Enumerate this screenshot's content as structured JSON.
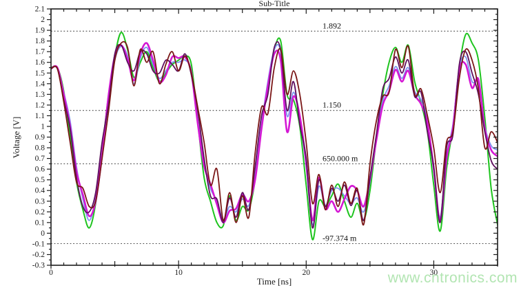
{
  "chart": {
    "title": "Sub-Title",
    "xlabel": "Time [ns]",
    "ylabel": "Voltage [V]",
    "watermark": "www.cntronics.com"
  },
  "colors": {
    "background": "#ffffff",
    "axis": "#1a1a1a",
    "reference_line": "#4a4a4a",
    "watermark": "#b2e5b2"
  },
  "chart_data": {
    "type": "line",
    "title": "Sub-Title",
    "xlabel": "Time [ns]",
    "ylabel": "Voltage [V]",
    "xlim": [
      0,
      35
    ],
    "ylim": [
      -0.3,
      2.1
    ],
    "grid": false,
    "legend": "none",
    "x_major_ticks": [
      0,
      10,
      20,
      30
    ],
    "x_medium_tick_interval": 5,
    "x_minor_tick_interval": 1,
    "y_major_tick_interval": 0.1,
    "y_minor_tick_interval": 0.05,
    "reference_lines": [
      {
        "value": 1.892,
        "label": "1.892"
      },
      {
        "value": 1.15,
        "label": "1.150"
      },
      {
        "value": 0.65,
        "label": "650.000 m"
      },
      {
        "value": -0.097374,
        "label": "-97.374 m"
      }
    ],
    "x_start": 0,
    "x_step": 0.5,
    "series": [
      {
        "name": "trace-green",
        "color": "#1ec41e",
        "values": [
          1.55,
          1.55,
          1.33,
          0.9,
          0.48,
          0.22,
          0.05,
          0.28,
          0.78,
          1.28,
          1.66,
          1.88,
          1.72,
          1.46,
          1.6,
          1.7,
          1.55,
          1.42,
          1.5,
          1.58,
          1.62,
          1.66,
          1.58,
          1.05,
          0.52,
          0.3,
          0.1,
          0.07,
          0.35,
          0.12,
          0.25,
          0.22,
          0.5,
          1.0,
          1.38,
          1.72,
          1.8,
          1.3,
          1.25,
          1.0,
          0.45,
          -0.06,
          0.3,
          0.25,
          0.35,
          0.46,
          0.3,
          0.15,
          0.28,
          0.12,
          0.4,
          0.88,
          1.3,
          1.6,
          1.74,
          1.6,
          1.76,
          1.42,
          1.22,
          0.95,
          0.45,
          0.02,
          0.6,
          1.0,
          1.55,
          1.86,
          1.78,
          1.62,
          1.08,
          0.42,
          0.08
        ]
      },
      {
        "name": "trace-lightblue",
        "color": "#7d95ee",
        "values": [
          1.54,
          1.55,
          1.32,
          1.05,
          0.62,
          0.32,
          0.12,
          0.33,
          0.76,
          1.24,
          1.62,
          1.75,
          1.66,
          1.4,
          1.64,
          1.74,
          1.58,
          1.45,
          1.52,
          1.6,
          1.6,
          1.62,
          1.52,
          1.06,
          0.66,
          0.42,
          0.3,
          0.13,
          0.25,
          0.2,
          0.32,
          0.26,
          0.54,
          1.02,
          1.42,
          1.72,
          1.7,
          1.1,
          1.32,
          1.08,
          0.62,
          0.08,
          0.44,
          0.26,
          0.4,
          0.42,
          0.35,
          0.28,
          0.33,
          0.2,
          0.48,
          0.9,
          1.24,
          1.38,
          1.56,
          1.45,
          1.55,
          1.33,
          1.25,
          1.06,
          0.58,
          0.15,
          0.72,
          1.02,
          1.55,
          1.65,
          1.42,
          1.4,
          1.0,
          0.82,
          0.78
        ]
      },
      {
        "name": "trace-magenta",
        "color": "#d418d4",
        "values": [
          1.54,
          1.55,
          1.3,
          1.0,
          0.58,
          0.36,
          0.16,
          0.3,
          0.73,
          1.28,
          1.66,
          1.76,
          1.63,
          1.43,
          1.68,
          1.78,
          1.62,
          1.42,
          1.48,
          1.65,
          1.64,
          1.65,
          1.5,
          1.03,
          0.63,
          0.46,
          0.27,
          0.1,
          0.21,
          0.23,
          0.36,
          0.3,
          0.5,
          0.98,
          1.38,
          1.68,
          1.62,
          0.95,
          1.28,
          1.1,
          0.66,
          0.12,
          0.52,
          0.23,
          0.3,
          0.2,
          0.32,
          0.44,
          0.4,
          0.25,
          0.51,
          0.87,
          1.2,
          1.33,
          1.53,
          1.42,
          1.52,
          1.3,
          1.21,
          1.03,
          0.61,
          0.12,
          0.7,
          0.98,
          1.53,
          1.58,
          1.36,
          1.44,
          0.98,
          0.78,
          0.72
        ]
      },
      {
        "name": "trace-purple",
        "color": "#5e0f5e",
        "values": [
          1.54,
          1.54,
          1.25,
          0.98,
          0.52,
          0.25,
          0.2,
          0.38,
          0.85,
          1.2,
          1.68,
          1.76,
          1.6,
          1.52,
          1.7,
          1.68,
          1.52,
          1.5,
          1.62,
          1.58,
          1.52,
          1.68,
          1.48,
          1.15,
          0.7,
          0.35,
          0.32,
          0.1,
          0.33,
          0.15,
          0.38,
          0.22,
          0.62,
          1.1,
          1.3,
          1.74,
          1.72,
          1.15,
          1.42,
          1.02,
          0.7,
          0.05,
          0.5,
          0.25,
          0.42,
          0.3,
          0.45,
          0.26,
          0.4,
          0.12,
          0.52,
          0.92,
          1.35,
          1.45,
          1.65,
          1.5,
          1.62,
          1.28,
          1.32,
          0.95,
          0.62,
          0.1,
          0.8,
          0.92,
          1.58,
          1.7,
          1.5,
          1.3,
          0.95,
          0.68,
          0.6
        ]
      },
      {
        "name": "trace-darkred",
        "color": "#7a1616",
        "values": [
          1.54,
          1.54,
          1.23,
          0.85,
          0.48,
          0.42,
          0.25,
          0.3,
          0.7,
          1.13,
          1.62,
          1.78,
          1.74,
          1.38,
          1.72,
          1.6,
          1.7,
          1.4,
          1.58,
          1.7,
          1.52,
          1.66,
          1.5,
          1.18,
          0.85,
          0.45,
          0.6,
          0.12,
          0.38,
          0.1,
          0.35,
          0.15,
          0.75,
          1.18,
          1.12,
          1.55,
          1.72,
          1.3,
          1.52,
          1.3,
          0.85,
          0.28,
          0.55,
          0.22,
          0.45,
          0.25,
          0.48,
          0.28,
          0.42,
          0.08,
          0.65,
          1.05,
          1.28,
          1.32,
          1.72,
          1.55,
          1.75,
          1.3,
          1.35,
          1.1,
          0.8,
          0.38,
          0.85,
          0.95,
          1.45,
          1.72,
          1.62,
          1.35,
          0.8,
          0.95,
          0.85
        ]
      }
    ]
  }
}
